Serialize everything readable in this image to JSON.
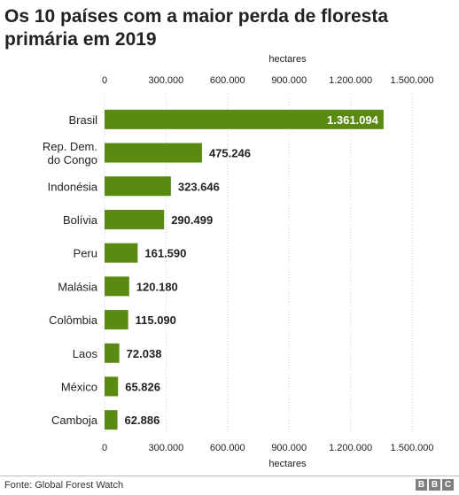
{
  "title": "Os 10 países com a maior perda de floresta primária em 2019",
  "source": "Fonte: Global Forest Watch",
  "logo": [
    "B",
    "B",
    "C"
  ],
  "colors": {
    "bar": "#5b8a12",
    "grid": "#d0d0d0",
    "text": "#222222",
    "label_inside": "#ffffff"
  },
  "chart_data": {
    "type": "bar",
    "orientation": "horizontal",
    "title": "Os 10 países com a maior perda de floresta primária em 2019",
    "xlabel": "hectares",
    "xlim": [
      0,
      1500000
    ],
    "ticks": [
      0,
      300000,
      600000,
      900000,
      1200000,
      1500000
    ],
    "tick_labels": [
      "0",
      "300.000",
      "600.000",
      "900.000",
      "1.200.000",
      "1.500.000"
    ],
    "grid": true,
    "categories": [
      [
        "Brasil"
      ],
      [
        "Rep. Dem.",
        "do Congo"
      ],
      [
        "Indonésia"
      ],
      [
        "Bolívia"
      ],
      [
        "Peru"
      ],
      [
        "Malásia"
      ],
      [
        "Colômbia"
      ],
      [
        "Laos"
      ],
      [
        "México"
      ],
      [
        "Camboja"
      ]
    ],
    "values": [
      1361094,
      475246,
      323646,
      290499,
      161590,
      120180,
      115090,
      72038,
      65826,
      62886
    ],
    "value_labels": [
      "1.361.094",
      "475.246",
      "323.646",
      "290.499",
      "161.590",
      "120.180",
      "115.090",
      "72.038",
      "65.826",
      "62.886"
    ]
  }
}
